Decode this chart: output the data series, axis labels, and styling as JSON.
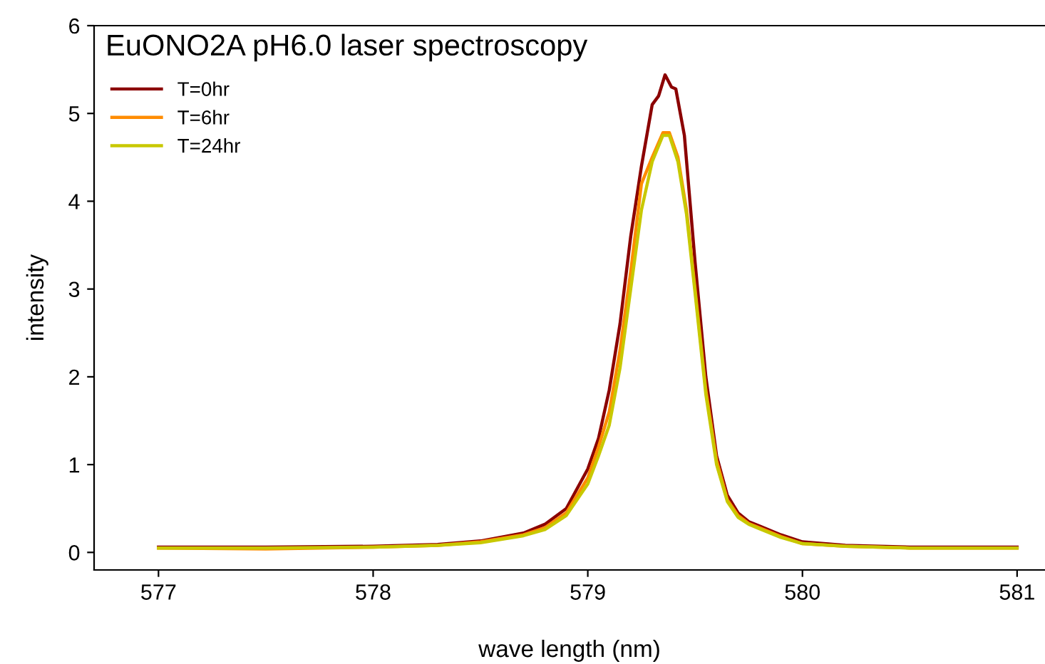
{
  "chart_data": {
    "type": "line",
    "title": "EuONO2A pH6.0 laser spectroscopy",
    "xlabel": "wave length (nm)",
    "ylabel": "intensity",
    "xlim": [
      576.7,
      581.13
    ],
    "ylim": [
      -0.2,
      6
    ],
    "xticks": [
      577,
      578,
      579,
      580,
      581
    ],
    "yticks": [
      0,
      1,
      2,
      3,
      4,
      5,
      6
    ],
    "grid": false,
    "legend": "top left",
    "series": [
      {
        "name": "T=0hr",
        "color": "#8b0000",
        "x": [
          577,
          577.5,
          578,
          578.3,
          578.5,
          578.7,
          578.8,
          578.9,
          579.0,
          579.05,
          579.1,
          579.15,
          579.2,
          579.25,
          579.3,
          579.33,
          579.36,
          579.39,
          579.41,
          579.45,
          579.5,
          579.55,
          579.6,
          579.65,
          579.7,
          579.75,
          579.8,
          579.9,
          580.0,
          580.2,
          580.5,
          581
        ],
        "values": [
          0.06,
          0.06,
          0.07,
          0.09,
          0.13,
          0.22,
          0.32,
          0.5,
          0.95,
          1.3,
          1.85,
          2.6,
          3.6,
          4.4,
          5.1,
          5.2,
          5.44,
          5.3,
          5.28,
          4.75,
          3.3,
          2.0,
          1.1,
          0.65,
          0.45,
          0.35,
          0.3,
          0.2,
          0.12,
          0.08,
          0.06,
          0.06
        ]
      },
      {
        "name": "T=6hr",
        "color": "#ff8c00",
        "x": [
          577,
          577.5,
          578,
          578.3,
          578.5,
          578.7,
          578.8,
          578.9,
          579.0,
          579.05,
          579.1,
          579.15,
          579.2,
          579.25,
          579.3,
          579.35,
          579.38,
          579.42,
          579.46,
          579.5,
          579.55,
          579.6,
          579.65,
          579.7,
          579.75,
          579.8,
          579.9,
          580.0,
          580.2,
          580.5,
          581
        ],
        "values": [
          0.05,
          0.04,
          0.06,
          0.08,
          0.12,
          0.2,
          0.28,
          0.45,
          0.85,
          1.2,
          1.6,
          2.3,
          3.2,
          4.2,
          4.5,
          4.78,
          4.78,
          4.5,
          3.9,
          3.0,
          1.85,
          1.05,
          0.6,
          0.42,
          0.33,
          0.28,
          0.18,
          0.1,
          0.07,
          0.05,
          0.05
        ]
      },
      {
        "name": "T=24hr",
        "color": "#c8c800",
        "x": [
          577,
          577.5,
          578,
          578.3,
          578.5,
          578.7,
          578.8,
          578.9,
          579.0,
          579.05,
          579.1,
          579.15,
          579.2,
          579.25,
          579.3,
          579.35,
          579.38,
          579.42,
          579.46,
          579.5,
          579.55,
          579.6,
          579.65,
          579.7,
          579.75,
          579.8,
          579.9,
          580.0,
          580.2,
          580.5,
          581
        ],
        "values": [
          0.05,
          0.05,
          0.06,
          0.08,
          0.11,
          0.19,
          0.26,
          0.42,
          0.78,
          1.1,
          1.45,
          2.1,
          3.0,
          3.9,
          4.45,
          4.75,
          4.75,
          4.45,
          3.85,
          2.95,
          1.8,
          1.0,
          0.58,
          0.4,
          0.32,
          0.27,
          0.17,
          0.1,
          0.07,
          0.05,
          0.05
        ]
      }
    ]
  }
}
